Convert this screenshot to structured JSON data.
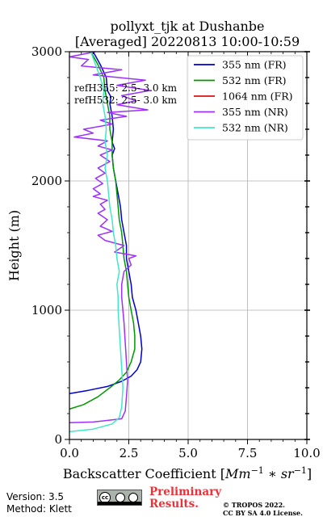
{
  "chart_data": {
    "type": "line",
    "title": "pollyxt_tjk at Dushanbe",
    "subtitle": "[Averaged] 20220813 10:00-10:59",
    "xlabel_text": "Backscatter Coefficient [",
    "xlabel_math_1": "Mm",
    "xlabel_math_sup1": "−1",
    "xlabel_math_2": " ∗ sr",
    "xlabel_math_sup2": "−1",
    "xlabel_close": "]",
    "ylabel": "Height (m)",
    "xlim": [
      0,
      10
    ],
    "ylim": [
      0,
      3000
    ],
    "xticks": [
      0,
      2.5,
      5,
      7.5,
      10
    ],
    "xtick_labels": [
      "0.0",
      "2.5",
      "5.0",
      "7.5",
      "10.0"
    ],
    "yticks": [
      0,
      1000,
      2000,
      3000
    ],
    "ytick_labels": [
      "0",
      "1000",
      "2000",
      "3000"
    ],
    "grid": true,
    "legend_position": "top-right",
    "annotations": [
      "refH355: 2.5- 3.0 km",
      "refH532: 2.5- 3.0 km"
    ],
    "series": [
      {
        "name": "355 nm (FR)",
        "color": "#0000cc",
        "points": [
          [
            0.0,
            355
          ],
          [
            0.8,
            380
          ],
          [
            1.6,
            410
          ],
          [
            2.2,
            450
          ],
          [
            2.6,
            490
          ],
          [
            2.85,
            540
          ],
          [
            3.0,
            600
          ],
          [
            3.05,
            700
          ],
          [
            3.0,
            800
          ],
          [
            2.9,
            900
          ],
          [
            2.8,
            1000
          ],
          [
            2.65,
            1100
          ],
          [
            2.6,
            1200
          ],
          [
            2.5,
            1300
          ],
          [
            2.4,
            1400
          ],
          [
            2.4,
            1500
          ],
          [
            2.3,
            1600
          ],
          [
            2.2,
            1700
          ],
          [
            2.15,
            1800
          ],
          [
            2.05,
            1900
          ],
          [
            1.95,
            2000
          ],
          [
            1.85,
            2100
          ],
          [
            1.8,
            2200
          ],
          [
            1.9,
            2250
          ],
          [
            1.8,
            2300
          ],
          [
            1.85,
            2400
          ],
          [
            1.8,
            2500
          ],
          [
            1.7,
            2600
          ],
          [
            1.75,
            2650
          ],
          [
            1.6,
            2700
          ],
          [
            1.55,
            2800
          ],
          [
            1.3,
            2900
          ],
          [
            1.0,
            3000
          ]
        ]
      },
      {
        "name": "532 nm (FR)",
        "color": "#009900",
        "points": [
          [
            0.0,
            235
          ],
          [
            0.6,
            270
          ],
          [
            1.2,
            330
          ],
          [
            1.7,
            400
          ],
          [
            2.1,
            460
          ],
          [
            2.4,
            520
          ],
          [
            2.6,
            600
          ],
          [
            2.75,
            700
          ],
          [
            2.75,
            800
          ],
          [
            2.7,
            900
          ],
          [
            2.6,
            1000
          ],
          [
            2.5,
            1100
          ],
          [
            2.45,
            1200
          ],
          [
            2.4,
            1300
          ],
          [
            2.3,
            1400
          ],
          [
            2.25,
            1500
          ],
          [
            2.2,
            1600
          ],
          [
            2.1,
            1700
          ],
          [
            2.05,
            1800
          ],
          [
            2.0,
            1900
          ],
          [
            1.95,
            2000
          ],
          [
            1.85,
            2100
          ],
          [
            1.8,
            2200
          ],
          [
            1.8,
            2300
          ],
          [
            1.7,
            2400
          ],
          [
            1.7,
            2500
          ],
          [
            1.6,
            2600
          ],
          [
            1.5,
            2700
          ],
          [
            1.45,
            2800
          ],
          [
            1.2,
            2900
          ],
          [
            0.9,
            3000
          ]
        ]
      },
      {
        "name": "1064 nm (FR)",
        "color": "#dd1111",
        "points": []
      },
      {
        "name": "355 nm (NR)",
        "color": "#9b30ff",
        "points": [
          [
            0.0,
            130
          ],
          [
            1.0,
            135
          ],
          [
            2.2,
            160
          ],
          [
            2.35,
            220
          ],
          [
            2.4,
            330
          ],
          [
            2.45,
            450
          ],
          [
            2.4,
            600
          ],
          [
            2.35,
            750
          ],
          [
            2.3,
            900
          ],
          [
            2.25,
            1000
          ],
          [
            2.2,
            1100
          ],
          [
            2.2,
            1200
          ],
          [
            2.3,
            1300
          ],
          [
            2.6,
            1350
          ],
          [
            2.5,
            1400
          ],
          [
            2.8,
            1420
          ],
          [
            1.9,
            1450
          ],
          [
            2.3,
            1500
          ],
          [
            1.5,
            1540
          ],
          [
            1.2,
            1580
          ],
          [
            1.8,
            1610
          ],
          [
            1.3,
            1650
          ],
          [
            1.6,
            1700
          ],
          [
            1.2,
            1750
          ],
          [
            1.5,
            1780
          ],
          [
            1.3,
            1820
          ],
          [
            1.6,
            1850
          ],
          [
            1.0,
            1880
          ],
          [
            1.3,
            1900
          ],
          [
            1.0,
            1940
          ],
          [
            1.4,
            1980
          ],
          [
            1.1,
            2020
          ],
          [
            1.5,
            2060
          ],
          [
            1.2,
            2100
          ],
          [
            1.7,
            2150
          ],
          [
            1.3,
            2200
          ],
          [
            1.8,
            2240
          ],
          [
            1.2,
            2270
          ],
          [
            1.6,
            2310
          ],
          [
            0.2,
            2340
          ],
          [
            1.0,
            2370
          ],
          [
            0.6,
            2400
          ],
          [
            1.8,
            2440
          ],
          [
            1.3,
            2470
          ],
          [
            2.4,
            2500
          ],
          [
            1.6,
            2530
          ],
          [
            3.3,
            2550
          ],
          [
            2.0,
            2590
          ],
          [
            2.8,
            2620
          ],
          [
            2.2,
            2660
          ],
          [
            3.4,
            2700
          ],
          [
            2.0,
            2740
          ],
          [
            3.2,
            2780
          ],
          [
            1.0,
            2820
          ],
          [
            2.2,
            2860
          ],
          [
            0.5,
            2890
          ],
          [
            0.8,
            2940
          ],
          [
            0.0,
            2960
          ],
          [
            1.1,
            3000
          ]
        ]
      },
      {
        "name": "532 nm (NR)",
        "color": "#3fe8c8",
        "points": [
          [
            0.0,
            60
          ],
          [
            1.0,
            80
          ],
          [
            1.8,
            120
          ],
          [
            2.1,
            170
          ],
          [
            2.2,
            250
          ],
          [
            2.25,
            400
          ],
          [
            2.2,
            550
          ],
          [
            2.15,
            700
          ],
          [
            2.1,
            850
          ],
          [
            2.05,
            1000
          ],
          [
            2.05,
            1100
          ],
          [
            2.0,
            1200
          ],
          [
            2.1,
            1300
          ],
          [
            2.0,
            1400
          ],
          [
            1.95,
            1500
          ],
          [
            1.85,
            1600
          ],
          [
            1.8,
            1700
          ],
          [
            1.7,
            1800
          ],
          [
            1.65,
            1900
          ],
          [
            1.6,
            2000
          ],
          [
            1.5,
            2100
          ],
          [
            1.6,
            2200
          ],
          [
            1.5,
            2300
          ],
          [
            1.55,
            2400
          ],
          [
            1.5,
            2500
          ],
          [
            1.4,
            2600
          ],
          [
            1.45,
            2700
          ],
          [
            1.3,
            2800
          ],
          [
            1.1,
            2900
          ],
          [
            0.9,
            3000
          ]
        ]
      }
    ]
  },
  "footer": {
    "version": "Version: 3.5",
    "method": "Method: Klett",
    "cc_label": "cc",
    "preliminary_1": "Preliminary",
    "preliminary_2": "Results.",
    "copyright_1": "© TROPOS 2022.",
    "copyright_2": "CC BY SA 4.0 License."
  }
}
